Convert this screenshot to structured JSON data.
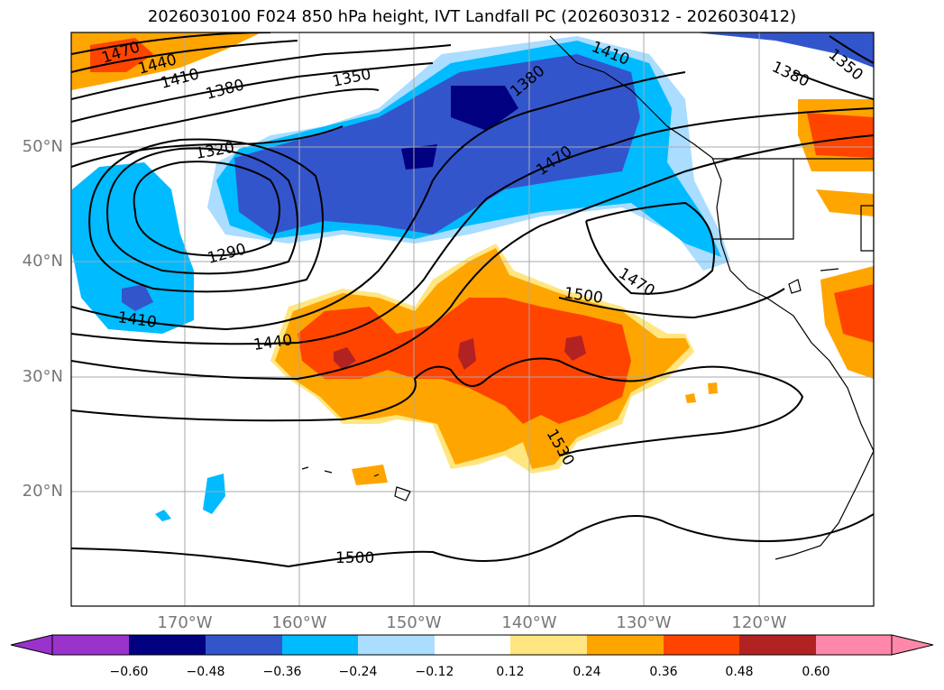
{
  "title": "2026030100 F024 850 hPa height, IVT Landfall PC (2026030312 - 2026030412)",
  "lat_labels": [
    "50°N",
    "40°N",
    "30°N",
    "20°N"
  ],
  "lon_labels": [
    "170°W",
    "160°W",
    "150°W",
    "140°W",
    "130°W",
    "120°W"
  ],
  "contour_labels": [
    "1470",
    "1440",
    "1410",
    "1380",
    "1350",
    "1320",
    "1290",
    "1410",
    "1440",
    "1500",
    "1470",
    "1530",
    "1500",
    "1410",
    "1380",
    "1380",
    "1350",
    "1470"
  ],
  "colorbar": {
    "ticks": [
      "−0.60",
      "−0.48",
      "−0.36",
      "−0.24",
      "−0.12",
      "0.12",
      "0.24",
      "0.36",
      "0.48",
      "0.60"
    ],
    "colors": [
      "#9933cc",
      "#000080",
      "#3355cc",
      "#00bbff",
      "#aaddff",
      "#ffffff",
      "#ffe680",
      "#ffa500",
      "#ff4400",
      "#b22222",
      "#ff88aa"
    ]
  }
}
